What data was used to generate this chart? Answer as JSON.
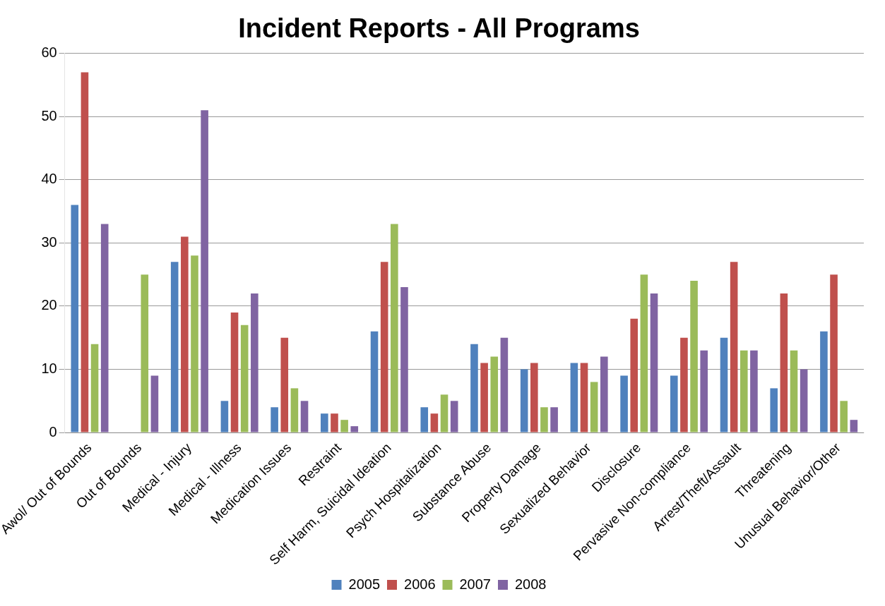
{
  "chart_data": {
    "type": "bar",
    "title": "Incident Reports - All Programs",
    "categories": [
      "Awol/ Out of Bounds",
      "Out of Bounds",
      "Medical - Injury",
      "Medical - Illness",
      "Medication Issues",
      "Restraint",
      "Self Harm, Suicidal Ideation",
      "Psych Hospitalization",
      "Substance Abuse",
      "Property Damage",
      "Sexualized Behavior",
      "Disclosure",
      "Pervasive Non-compliance",
      "Arrest/Theft/Assault",
      "Threatening",
      "Unusual Behavior/Other"
    ],
    "series": [
      {
        "name": "2005",
        "color": "#4f81bd",
        "values": [
          36,
          null,
          27,
          5,
          4,
          3,
          16,
          4,
          14,
          10,
          11,
          9,
          9,
          15,
          7,
          16
        ]
      },
      {
        "name": "2006",
        "color": "#c0504d",
        "values": [
          57,
          null,
          31,
          19,
          15,
          3,
          27,
          3,
          11,
          11,
          11,
          18,
          15,
          27,
          22,
          25
        ]
      },
      {
        "name": "2007",
        "color": "#9bbb59",
        "values": [
          14,
          25,
          28,
          17,
          7,
          2,
          33,
          6,
          12,
          4,
          8,
          25,
          24,
          13,
          13,
          5
        ]
      },
      {
        "name": "2008",
        "color": "#8064a2",
        "values": [
          33,
          9,
          51,
          22,
          5,
          1,
          23,
          5,
          15,
          4,
          12,
          22,
          13,
          13,
          10,
          2
        ]
      }
    ],
    "ylim": [
      0,
      60
    ],
    "yticks": [
      0,
      10,
      20,
      30,
      40,
      50,
      60
    ],
    "grid": "y",
    "legend": "bottom"
  }
}
